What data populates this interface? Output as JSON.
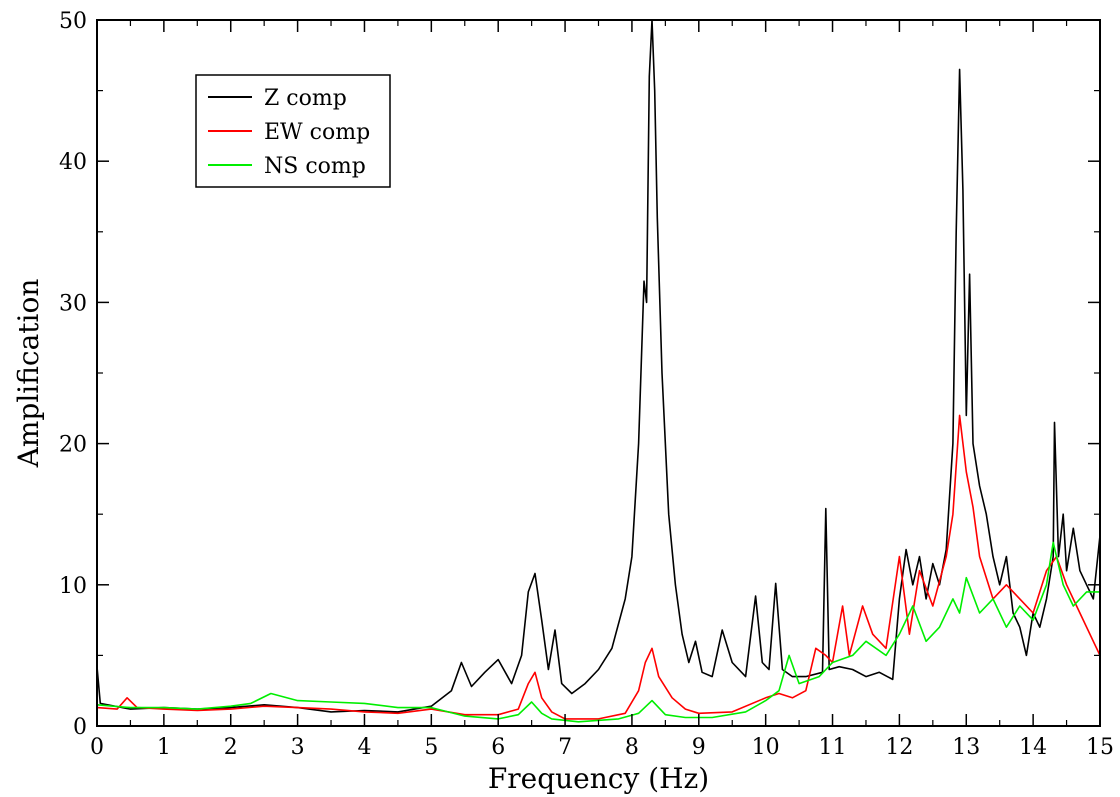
{
  "chart_data": {
    "type": "line",
    "xlabel": "Frequency (Hz)",
    "ylabel": "Amplification",
    "xlim": [
      0,
      15
    ],
    "ylim": [
      0,
      50
    ],
    "x_ticks": [
      0,
      1,
      2,
      3,
      4,
      5,
      6,
      7,
      8,
      9,
      10,
      11,
      12,
      13,
      14,
      15
    ],
    "y_ticks": [
      0,
      10,
      20,
      30,
      40,
      50
    ],
    "grid": false,
    "legend_position": "top-left",
    "series": [
      {
        "name": "Z comp",
        "color": "#000000",
        "points": [
          [
            0,
            4.2
          ],
          [
            0.05,
            1.6
          ],
          [
            0.5,
            1.2
          ],
          [
            1,
            1.3
          ],
          [
            1.5,
            1.2
          ],
          [
            2,
            1.3
          ],
          [
            2.5,
            1.5
          ],
          [
            3,
            1.3
          ],
          [
            3.5,
            1.0
          ],
          [
            4,
            1.1
          ],
          [
            4.5,
            1.0
          ],
          [
            5,
            1.4
          ],
          [
            5.3,
            2.5
          ],
          [
            5.45,
            4.5
          ],
          [
            5.6,
            2.8
          ],
          [
            5.8,
            3.8
          ],
          [
            6,
            4.7
          ],
          [
            6.2,
            3.0
          ],
          [
            6.35,
            5.0
          ],
          [
            6.45,
            9.5
          ],
          [
            6.55,
            10.8
          ],
          [
            6.65,
            7.5
          ],
          [
            6.75,
            4.0
          ],
          [
            6.85,
            6.8
          ],
          [
            6.95,
            3.0
          ],
          [
            7.1,
            2.3
          ],
          [
            7.3,
            3.0
          ],
          [
            7.5,
            4.0
          ],
          [
            7.7,
            5.5
          ],
          [
            7.9,
            9.0
          ],
          [
            8.0,
            12.0
          ],
          [
            8.1,
            20.0
          ],
          [
            8.18,
            31.5
          ],
          [
            8.22,
            30.0
          ],
          [
            8.26,
            46.0
          ],
          [
            8.3,
            50.0
          ],
          [
            8.34,
            45.0
          ],
          [
            8.38,
            36.0
          ],
          [
            8.45,
            25.0
          ],
          [
            8.55,
            15.0
          ],
          [
            8.65,
            10.0
          ],
          [
            8.75,
            6.5
          ],
          [
            8.85,
            4.5
          ],
          [
            8.95,
            6.0
          ],
          [
            9.05,
            3.8
          ],
          [
            9.2,
            3.5
          ],
          [
            9.35,
            6.8
          ],
          [
            9.5,
            4.5
          ],
          [
            9.7,
            3.5
          ],
          [
            9.85,
            9.2
          ],
          [
            9.95,
            4.5
          ],
          [
            10.05,
            4.0
          ],
          [
            10.15,
            10.1
          ],
          [
            10.25,
            4.0
          ],
          [
            10.4,
            3.5
          ],
          [
            10.6,
            3.5
          ],
          [
            10.85,
            3.8
          ],
          [
            10.9,
            15.4
          ],
          [
            10.95,
            4.0
          ],
          [
            11.1,
            4.2
          ],
          [
            11.3,
            4.0
          ],
          [
            11.5,
            3.5
          ],
          [
            11.7,
            3.8
          ],
          [
            11.9,
            3.3
          ],
          [
            12.0,
            9.0
          ],
          [
            12.1,
            12.5
          ],
          [
            12.2,
            10.0
          ],
          [
            12.3,
            12.0
          ],
          [
            12.4,
            9.0
          ],
          [
            12.5,
            11.5
          ],
          [
            12.6,
            10.0
          ],
          [
            12.7,
            12.5
          ],
          [
            12.8,
            20.0
          ],
          [
            12.85,
            35.0
          ],
          [
            12.9,
            46.5
          ],
          [
            12.95,
            38.0
          ],
          [
            13.0,
            22.0
          ],
          [
            13.05,
            32.0
          ],
          [
            13.1,
            20.0
          ],
          [
            13.2,
            17.0
          ],
          [
            13.3,
            15.0
          ],
          [
            13.4,
            12.0
          ],
          [
            13.5,
            10.0
          ],
          [
            13.6,
            12.0
          ],
          [
            13.7,
            8.0
          ],
          [
            13.8,
            7.0
          ],
          [
            13.9,
            5.0
          ],
          [
            14.0,
            8.0
          ],
          [
            14.1,
            7.0
          ],
          [
            14.2,
            9.0
          ],
          [
            14.3,
            12.0
          ],
          [
            14.32,
            21.5
          ],
          [
            14.38,
            12.0
          ],
          [
            14.45,
            15.0
          ],
          [
            14.5,
            11.0
          ],
          [
            14.6,
            14.0
          ],
          [
            14.7,
            11.0
          ],
          [
            14.8,
            10.0
          ],
          [
            14.9,
            9.0
          ],
          [
            15.0,
            13.5
          ]
        ]
      },
      {
        "name": "EW comp",
        "color": "#ff0000",
        "points": [
          [
            0,
            1.3
          ],
          [
            0.3,
            1.2
          ],
          [
            0.45,
            2.0
          ],
          [
            0.6,
            1.3
          ],
          [
            1,
            1.2
          ],
          [
            1.5,
            1.1
          ],
          [
            2,
            1.2
          ],
          [
            2.5,
            1.4
          ],
          [
            3,
            1.3
          ],
          [
            3.5,
            1.2
          ],
          [
            4,
            1.0
          ],
          [
            4.5,
            0.9
          ],
          [
            5,
            1.2
          ],
          [
            5.5,
            0.8
          ],
          [
            6,
            0.8
          ],
          [
            6.3,
            1.2
          ],
          [
            6.45,
            3.0
          ],
          [
            6.55,
            3.8
          ],
          [
            6.65,
            2.0
          ],
          [
            6.8,
            1.0
          ],
          [
            7.0,
            0.5
          ],
          [
            7.5,
            0.5
          ],
          [
            7.9,
            0.9
          ],
          [
            8.1,
            2.5
          ],
          [
            8.2,
            4.5
          ],
          [
            8.3,
            5.5
          ],
          [
            8.4,
            3.5
          ],
          [
            8.6,
            2.0
          ],
          [
            8.8,
            1.2
          ],
          [
            9.0,
            0.9
          ],
          [
            9.5,
            1.0
          ],
          [
            10.0,
            2.0
          ],
          [
            10.2,
            2.3
          ],
          [
            10.4,
            2.0
          ],
          [
            10.6,
            2.5
          ],
          [
            10.75,
            5.5
          ],
          [
            10.9,
            5.0
          ],
          [
            11.0,
            4.5
          ],
          [
            11.15,
            8.5
          ],
          [
            11.25,
            5.0
          ],
          [
            11.45,
            8.5
          ],
          [
            11.6,
            6.5
          ],
          [
            11.8,
            5.5
          ],
          [
            12.0,
            12.0
          ],
          [
            12.15,
            6.5
          ],
          [
            12.3,
            11.0
          ],
          [
            12.5,
            8.5
          ],
          [
            12.7,
            12.0
          ],
          [
            12.8,
            15.0
          ],
          [
            12.9,
            22.0
          ],
          [
            13.0,
            18.0
          ],
          [
            13.1,
            15.5
          ],
          [
            13.2,
            12.0
          ],
          [
            13.4,
            9.0
          ],
          [
            13.6,
            10.0
          ],
          [
            13.8,
            9.0
          ],
          [
            14.0,
            8.0
          ],
          [
            14.2,
            11.0
          ],
          [
            14.35,
            12.0
          ],
          [
            14.5,
            10.0
          ],
          [
            14.7,
            8.0
          ],
          [
            14.9,
            6.0
          ],
          [
            15.0,
            5.0
          ]
        ]
      },
      {
        "name": "NS comp",
        "color": "#00ee00",
        "points": [
          [
            0,
            1.5
          ],
          [
            0.5,
            1.3
          ],
          [
            1,
            1.3
          ],
          [
            1.5,
            1.2
          ],
          [
            2,
            1.4
          ],
          [
            2.3,
            1.6
          ],
          [
            2.6,
            2.3
          ],
          [
            3,
            1.8
          ],
          [
            3.5,
            1.7
          ],
          [
            4,
            1.6
          ],
          [
            4.5,
            1.3
          ],
          [
            5,
            1.3
          ],
          [
            5.5,
            0.7
          ],
          [
            6,
            0.5
          ],
          [
            6.3,
            0.8
          ],
          [
            6.5,
            1.7
          ],
          [
            6.65,
            0.9
          ],
          [
            6.8,
            0.5
          ],
          [
            7.2,
            0.3
          ],
          [
            7.8,
            0.5
          ],
          [
            8.1,
            0.9
          ],
          [
            8.3,
            1.8
          ],
          [
            8.5,
            0.8
          ],
          [
            8.8,
            0.6
          ],
          [
            9.2,
            0.6
          ],
          [
            9.7,
            1.0
          ],
          [
            10.0,
            1.8
          ],
          [
            10.2,
            2.5
          ],
          [
            10.35,
            5.0
          ],
          [
            10.5,
            3.0
          ],
          [
            10.8,
            3.5
          ],
          [
            11.0,
            4.5
          ],
          [
            11.3,
            5.0
          ],
          [
            11.5,
            6.0
          ],
          [
            11.8,
            5.0
          ],
          [
            12.0,
            6.5
          ],
          [
            12.2,
            8.5
          ],
          [
            12.4,
            6.0
          ],
          [
            12.6,
            7.0
          ],
          [
            12.8,
            9.0
          ],
          [
            12.9,
            8.0
          ],
          [
            13.0,
            10.5
          ],
          [
            13.2,
            8.0
          ],
          [
            13.4,
            9.0
          ],
          [
            13.6,
            7.0
          ],
          [
            13.8,
            8.5
          ],
          [
            14.0,
            7.5
          ],
          [
            14.2,
            10.0
          ],
          [
            14.3,
            13.0
          ],
          [
            14.45,
            10.0
          ],
          [
            14.6,
            8.5
          ],
          [
            14.8,
            9.5
          ],
          [
            15.0,
            9.5
          ]
        ]
      }
    ]
  }
}
